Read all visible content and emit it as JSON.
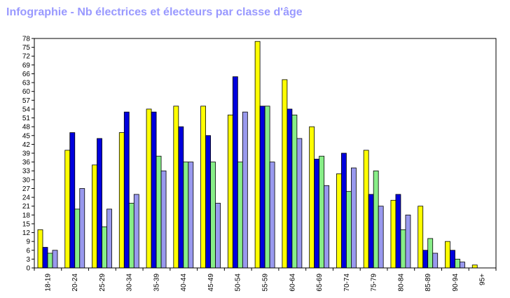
{
  "title": "Infographie - Nb électrices et électeurs par classe d'âge",
  "chart_data": {
    "type": "bar",
    "title": "Infographie - Nb électrices et électeurs par classe d'âge",
    "xlabel": "",
    "ylabel": "",
    "ylim": [
      0,
      78
    ],
    "yticks": [
      0,
      3,
      6,
      9,
      12,
      15,
      18,
      21,
      24,
      27,
      30,
      33,
      36,
      39,
      42,
      45,
      48,
      51,
      54,
      57,
      60,
      63,
      66,
      69,
      72,
      75,
      78
    ],
    "grid": false,
    "legend": "none",
    "categories": [
      "18-19",
      "20-24",
      "25-29",
      "30-34",
      "35-39",
      "40-44",
      "45-49",
      "50-54",
      "55-59",
      "60-64",
      "65-69",
      "70-74",
      "75-79",
      "80-84",
      "85-89",
      "90-94",
      "95+"
    ],
    "series": [
      {
        "color": "#ffff00",
        "values": [
          13,
          40,
          35,
          46,
          54,
          55,
          55,
          52,
          77,
          64,
          48,
          32,
          40,
          23,
          21,
          9,
          1
        ]
      },
      {
        "color": "#0000dd",
        "values": [
          7,
          46,
          44,
          53,
          53,
          48,
          45,
          65,
          55,
          54,
          37,
          39,
          25,
          25,
          6,
          6,
          0
        ]
      },
      {
        "color": "#88ee88",
        "values": [
          5,
          20,
          14,
          22,
          38,
          36,
          36,
          36,
          55,
          52,
          38,
          26,
          33,
          13,
          10,
          3,
          0
        ]
      },
      {
        "color": "#9999ee",
        "values": [
          6,
          27,
          20,
          25,
          33,
          36,
          22,
          53,
          36,
          44,
          28,
          34,
          21,
          18,
          5,
          2,
          0
        ]
      }
    ]
  }
}
